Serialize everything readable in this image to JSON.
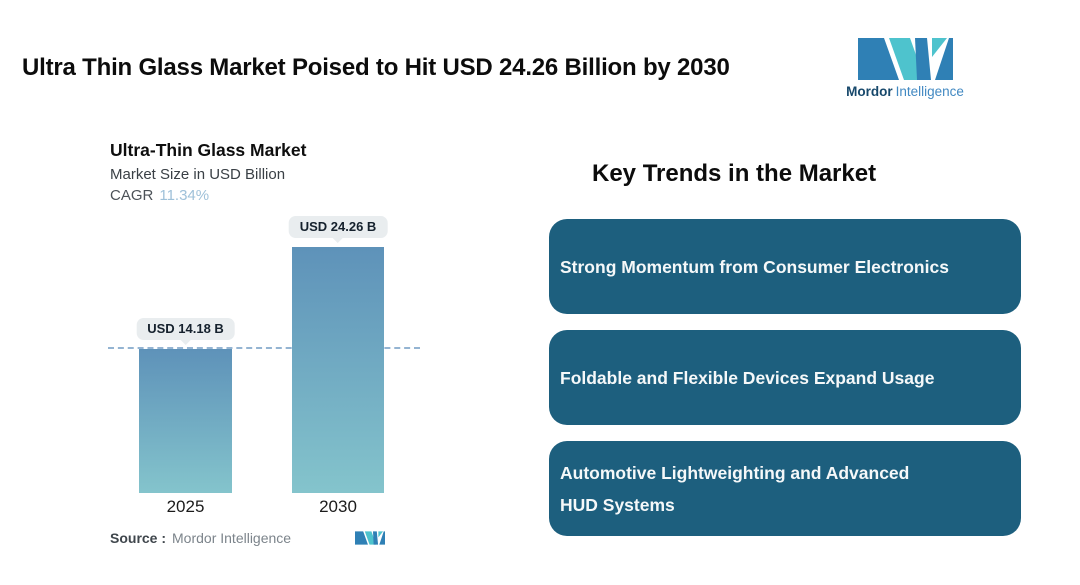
{
  "header": {
    "title": "Ultra Thin Glass Market Poised to Hit USD 24.26 Billion by 2030"
  },
  "brand": {
    "name_bold": "Mordor",
    "name_light": "Intelligence"
  },
  "chart": {
    "title": "Ultra-Thin Glass Market",
    "subtitle": "Market Size in USD Billion",
    "cagr_label": "CAGR",
    "cagr_value": "11.34%",
    "source_label": "Source :",
    "source_value": "Mordor Intelligence"
  },
  "chart_data": {
    "type": "bar",
    "title": "Ultra-Thin Glass Market",
    "subtitle": "Market Size in USD Billion",
    "cagr_percent": 11.34,
    "categories": [
      "2025",
      "2030"
    ],
    "values": [
      14.18,
      24.26
    ],
    "value_labels": [
      "USD 14.18 B",
      "USD 24.26 B"
    ],
    "unit": "USD Billion",
    "ylim": [
      0,
      26
    ],
    "reference_line": 14.18,
    "grid": false,
    "legend": false,
    "bar_gradient": [
      "#5e92b9",
      "#84c4cc"
    ]
  },
  "trends": {
    "heading": "Key Trends in the Market",
    "items": [
      "Strong Momentum from Consumer Electronics",
      "Foldable and Flexible Devices Expand Usage",
      "Automotive Lightweighting and Advanced HUD Systems"
    ]
  },
  "colors": {
    "brand_teal": "#4ec3cd",
    "brand_blue": "#2f80b5",
    "box_teal": "#1d5f7e",
    "bar_top": "#5e92b9",
    "bar_bottom": "#84c4cc",
    "dashed": "#94b4d2",
    "badge_bg": "#e9edef",
    "cagr_value": "#9fc1d9"
  }
}
